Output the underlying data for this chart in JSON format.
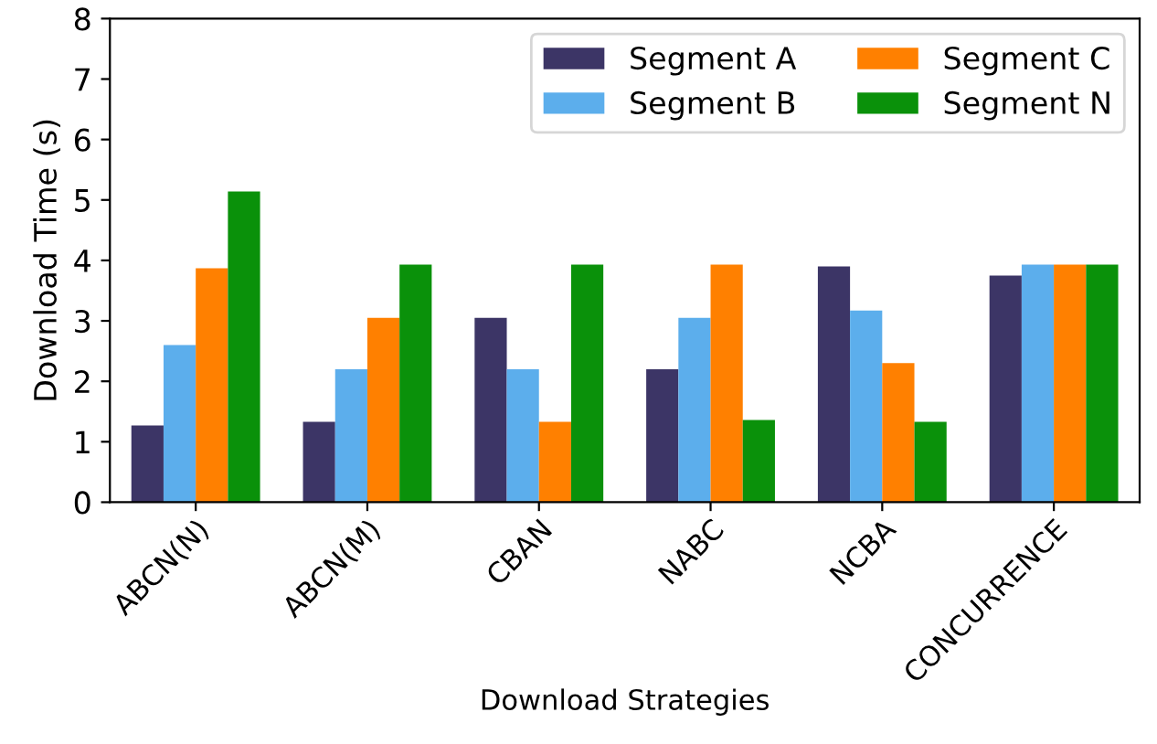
{
  "chart_data": {
    "type": "bar",
    "xlabel": "Download Strategies",
    "ylabel": "Download Time (s)",
    "categories": [
      "ABCN(N)",
      "ABCN(M)",
      "CBAN",
      "NABC",
      "NCBA",
      "CONCURRENCE"
    ],
    "series": [
      {
        "name": "Segment A",
        "color": "#3c3566",
        "values": [
          1.27,
          1.33,
          3.05,
          2.2,
          3.9,
          3.75
        ]
      },
      {
        "name": "Segment B",
        "color": "#5caeec",
        "values": [
          2.6,
          2.2,
          2.2,
          3.05,
          3.17,
          3.93
        ]
      },
      {
        "name": "Segment C",
        "color": "#ff8000",
        "values": [
          3.87,
          3.05,
          1.33,
          3.93,
          2.3,
          3.93
        ]
      },
      {
        "name": "Segment N",
        "color": "#0a910a",
        "values": [
          5.14,
          3.93,
          3.93,
          1.36,
          1.33,
          3.93
        ]
      }
    ],
    "ylim": [
      0,
      8
    ],
    "yticks": [
      0,
      1,
      2,
      3,
      4,
      5,
      6,
      7,
      8
    ],
    "legend": "top right",
    "grid": false
  }
}
